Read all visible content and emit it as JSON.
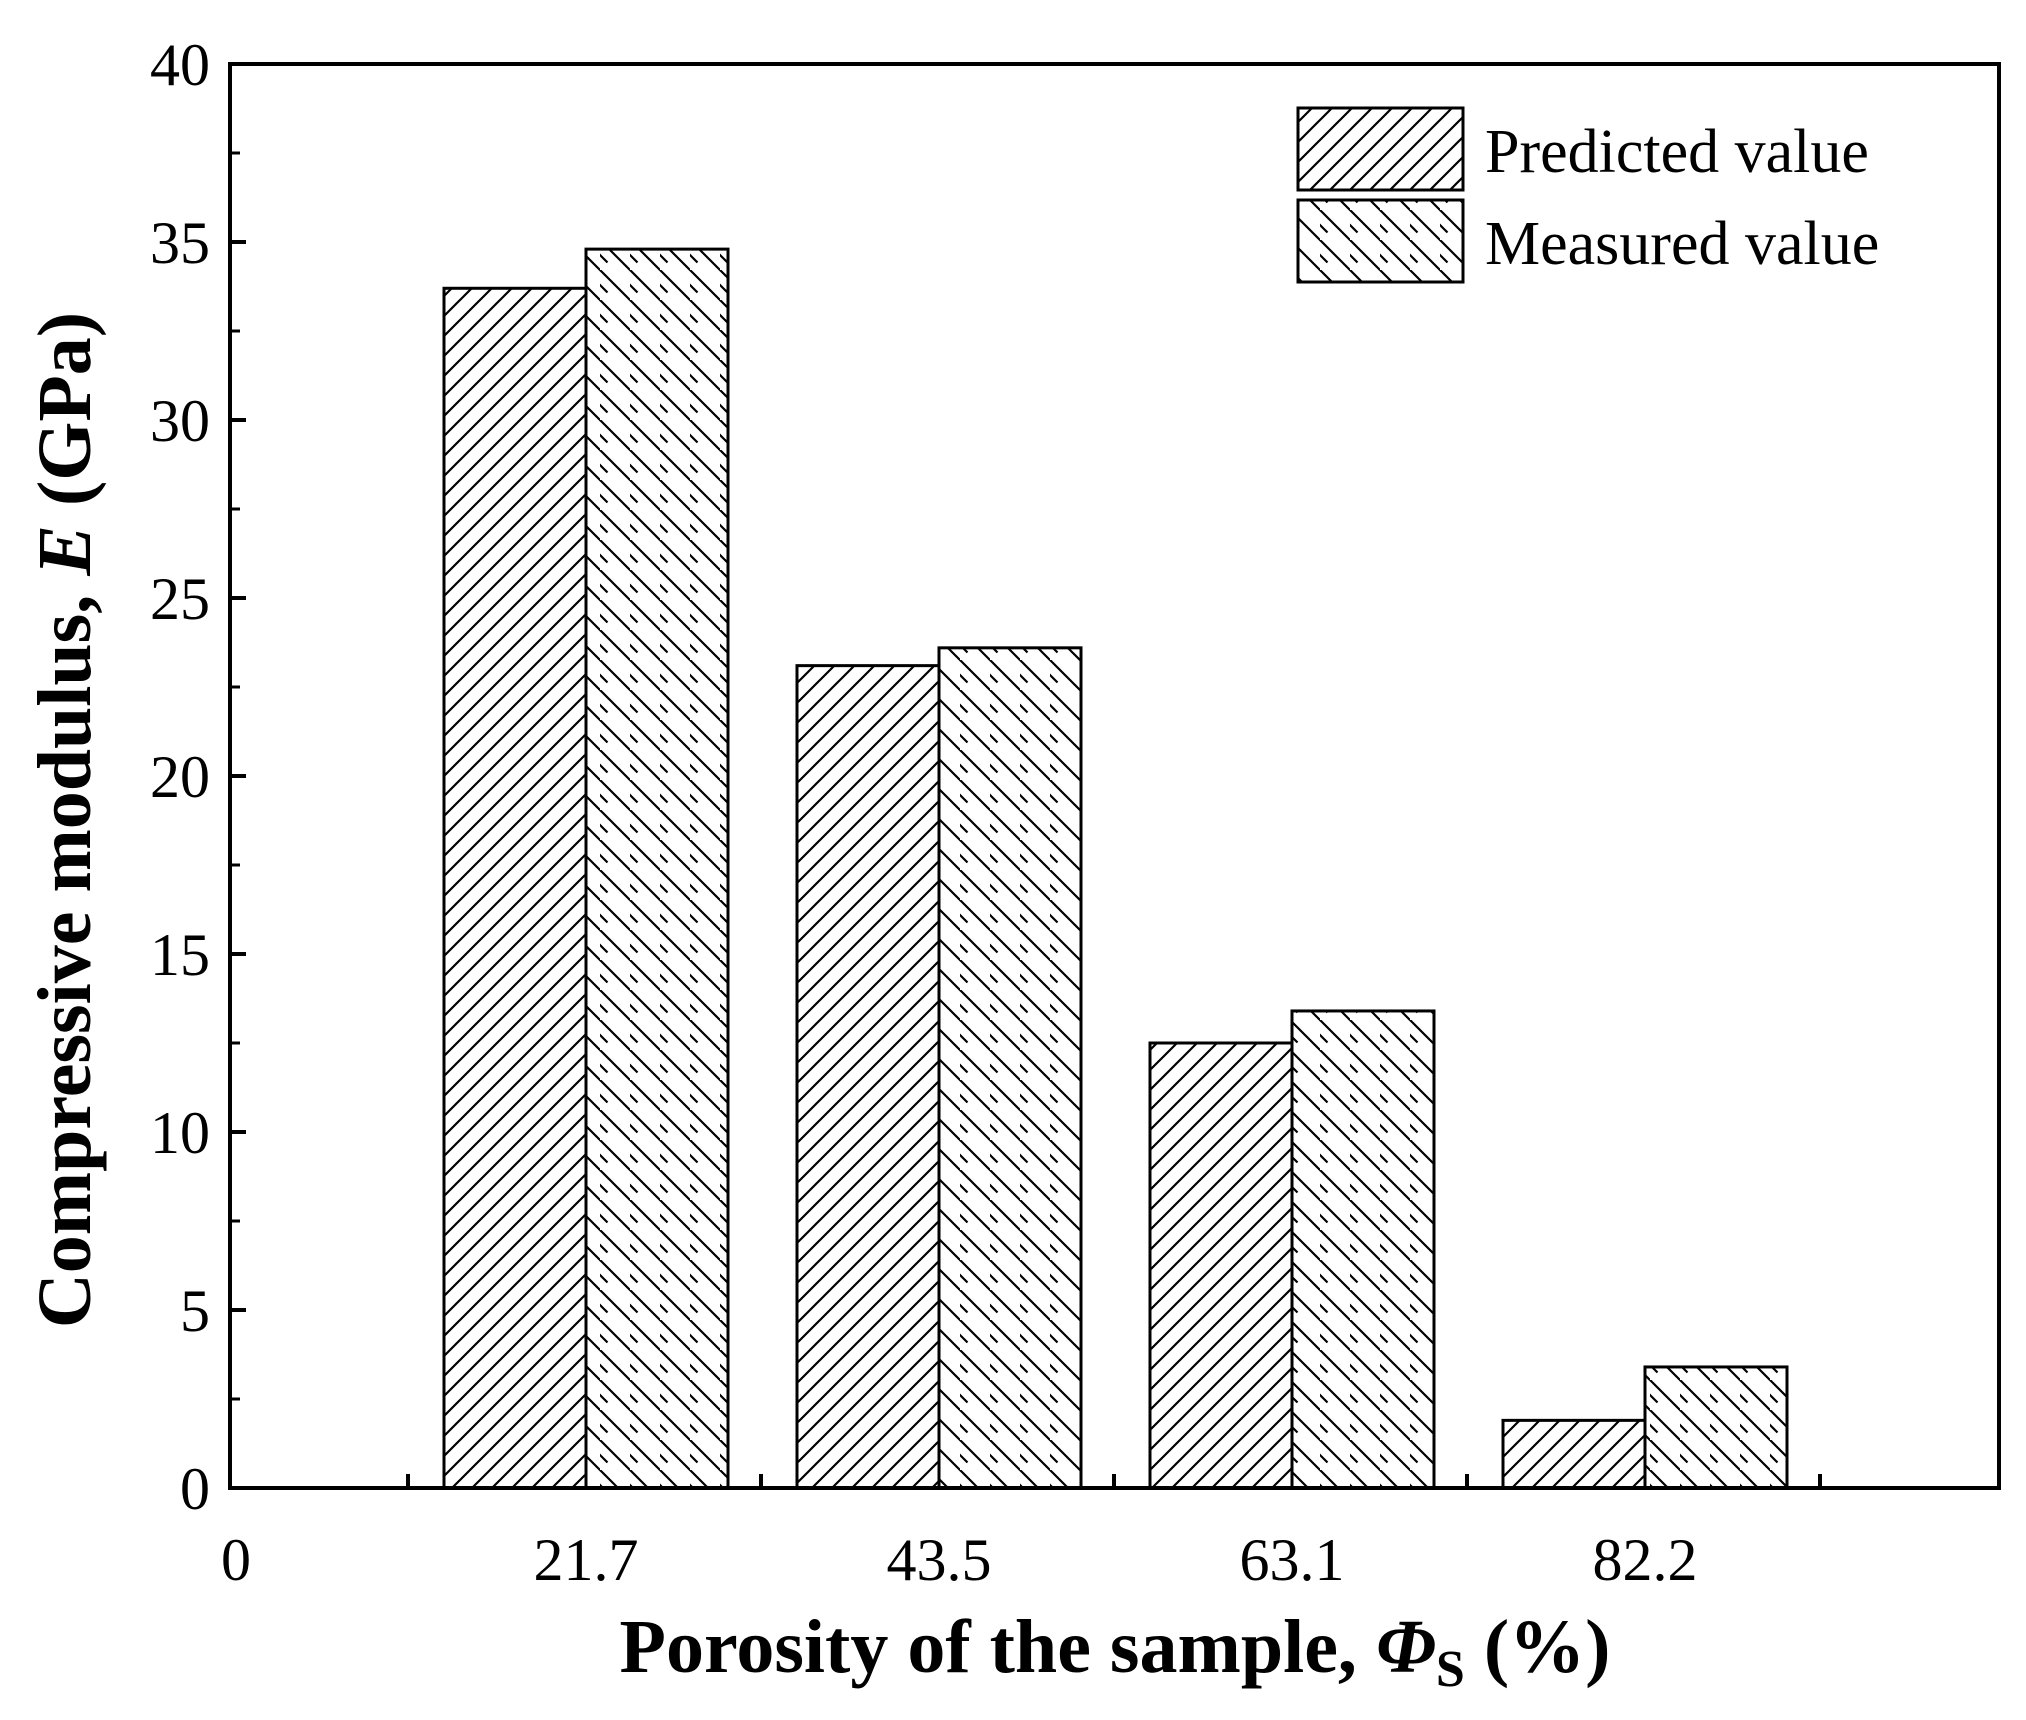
{
  "chart_data": {
    "type": "bar",
    "categories": [
      "21.7",
      "43.5",
      "63.1",
      "82.2"
    ],
    "series": [
      {
        "name": "Predicted value",
        "values": [
          33.7,
          23.1,
          12.5,
          1.9
        ],
        "pattern": "forward-hatch"
      },
      {
        "name": "Measured value",
        "values": [
          34.8,
          23.6,
          13.4,
          3.4
        ],
        "pattern": "backward-hatch"
      }
    ],
    "x_origin_label": "0",
    "xlabel": {
      "main": "Porosity of the sample, ",
      "symbol": "Φ",
      "subscript": "S",
      "unit": " (%)"
    },
    "ylabel": {
      "main": "Compressive modulus, ",
      "symbol": "E",
      "unit": " (GPa)"
    },
    "ylim": [
      0,
      40
    ],
    "yticks": [
      0,
      5,
      10,
      15,
      20,
      25,
      30,
      35,
      40
    ],
    "grid": false,
    "legend_position": "top-right",
    "colors": {
      "stroke": "#000000",
      "fill": "#ffffff"
    }
  }
}
